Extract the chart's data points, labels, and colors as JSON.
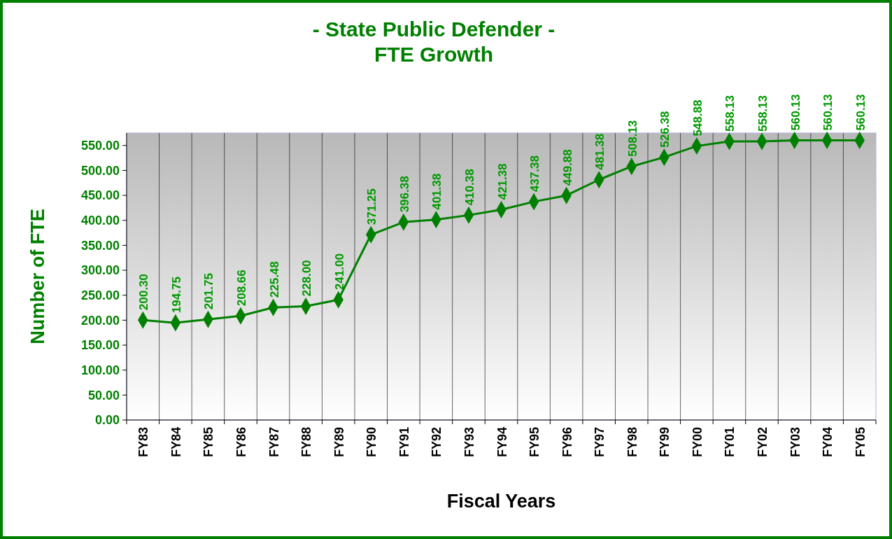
{
  "chart_data": {
    "type": "line",
    "title": "- State Public Defender -\nFTE Growth",
    "xlabel": "Fiscal Years",
    "ylabel": "Number of FTE",
    "categories": [
      "FY83",
      "FY84",
      "FY85",
      "FY86",
      "FY87",
      "FY88",
      "FY89",
      "FY90",
      "FY91",
      "FY92",
      "FY93",
      "FY94",
      "FY95",
      "FY96",
      "FY97",
      "FY98",
      "FY99",
      "FY00",
      "FY01",
      "FY02",
      "FY03",
      "FY04",
      "FY05"
    ],
    "series": [
      {
        "color": "#008000",
        "values": [
          200.3,
          194.75,
          201.75,
          208.66,
          225.48,
          228.0,
          241.0,
          371.25,
          396.38,
          401.38,
          410.38,
          421.38,
          437.38,
          449.88,
          481.38,
          508.13,
          526.38,
          548.88,
          558.13,
          558.13,
          560.13,
          560.13,
          560.13
        ],
        "value_labels": [
          "200.30",
          "194.75",
          "201.75",
          "208.66",
          "225.48",
          "228.00",
          "241.00",
          "371.25",
          "396.38",
          "401.38",
          "410.38",
          "421.38",
          "437.38",
          "449.88",
          "481.38",
          "508.13",
          "526.38",
          "548.88",
          "558.13",
          "558.13",
          "560.13",
          "560.13",
          "560.13"
        ]
      }
    ],
    "ylim": [
      0,
      575
    ],
    "yticks": [
      {
        "value": 0,
        "label": "0.00"
      },
      {
        "value": 50,
        "label": "50.00"
      },
      {
        "value": 100,
        "label": "100.00"
      },
      {
        "value": 150,
        "label": "150.00"
      },
      {
        "value": 200,
        "label": "200.00"
      },
      {
        "value": 250,
        "label": "250.00"
      },
      {
        "value": 300,
        "label": "300.00"
      },
      {
        "value": 350,
        "label": "350.00"
      },
      {
        "value": 400,
        "label": "400.00"
      },
      {
        "value": 450,
        "label": "450.00"
      },
      {
        "value": 500,
        "label": "500.00"
      },
      {
        "value": 550,
        "label": "550.00"
      }
    ],
    "grid": "x",
    "marker": "diamond",
    "line_style": "solid"
  }
}
